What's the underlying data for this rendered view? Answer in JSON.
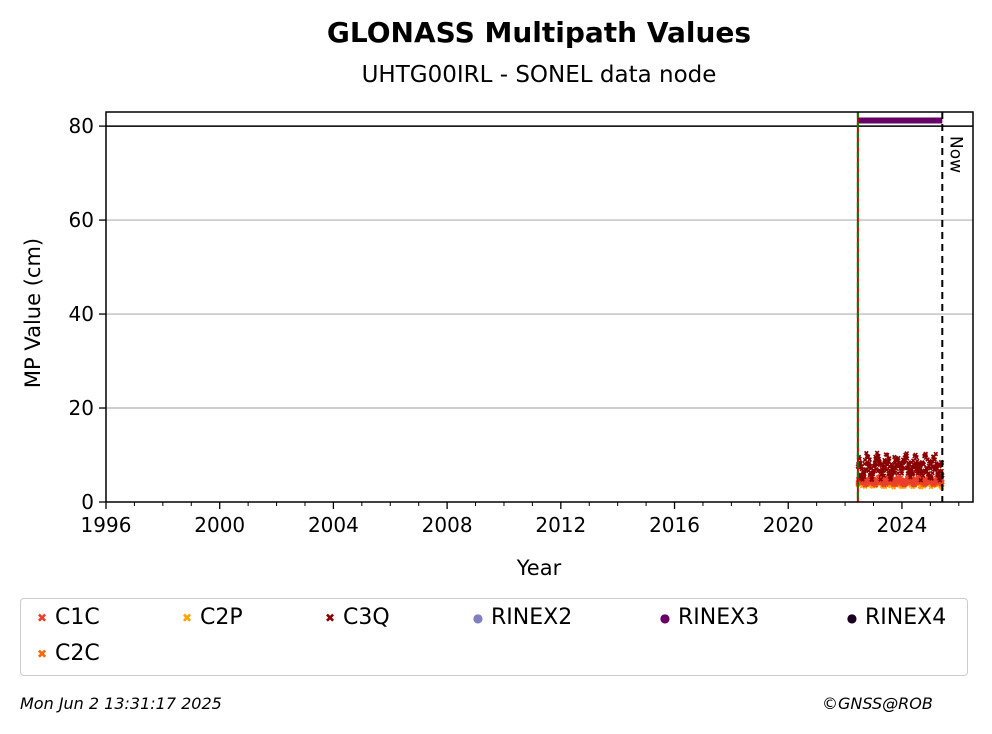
{
  "chart_data": {
    "type": "scatter",
    "title": "GLONASS Multipath Values",
    "subtitle": "UHTG00IRL - SONEL data node",
    "xlabel": "Year",
    "ylabel": "MP Value (cm)",
    "xlim": [
      1996,
      2026.5
    ],
    "ylim": [
      0,
      83
    ],
    "x_ticks": [
      "1996",
      "2000",
      "2004",
      "2008",
      "2012",
      "2016",
      "2020",
      "2024"
    ],
    "y_ticks": [
      "0",
      "20",
      "40",
      "60",
      "80"
    ],
    "grid": "horizontal",
    "reference_lines": [
      {
        "type": "horizontal",
        "y": 80,
        "color": "#000000"
      },
      {
        "type": "vertical",
        "x": 2022.45,
        "color": "#008000",
        "style": "dashed",
        "label": ""
      },
      {
        "type": "vertical",
        "x": 2025.42,
        "color": "#000000",
        "style": "dashed",
        "label": "Now"
      }
    ],
    "series": [
      {
        "name": "C1C",
        "color": "#e8412c",
        "marker": "x",
        "x_range": [
          2022.45,
          2025.42
        ],
        "y_range": [
          3.5,
          5.5
        ]
      },
      {
        "name": "C2P",
        "color": "#ffa500",
        "marker": "x",
        "x_range": [
          2022.45,
          2025.42
        ],
        "y_range": [
          3.0,
          5.0
        ]
      },
      {
        "name": "C3Q",
        "color": "#8b0000",
        "marker": "x",
        "x_range": [
          2022.45,
          2025.42
        ],
        "y_range": [
          4.5,
          10.5
        ]
      },
      {
        "name": "RINEX2",
        "color": "#8080c0",
        "marker": "o",
        "x_range": [],
        "y_value": null
      },
      {
        "name": "RINEX3",
        "color": "#660066",
        "marker": "o",
        "x_range": [
          2022.45,
          2025.42
        ],
        "y_value": 81.2
      },
      {
        "name": "RINEX4",
        "color": "#1a0020",
        "marker": "o",
        "x_range": [],
        "y_value": null
      },
      {
        "name": "C2C",
        "color": "#ff6600",
        "marker": "x",
        "x_range": [
          2022.45,
          2025.42
        ],
        "y_range": [
          3.5,
          5.0
        ]
      }
    ],
    "legend_position": "bottom"
  },
  "footer": {
    "timestamp": "Mon Jun  2 13:31:17 2025",
    "copyright": "©GNSS@ROB"
  }
}
